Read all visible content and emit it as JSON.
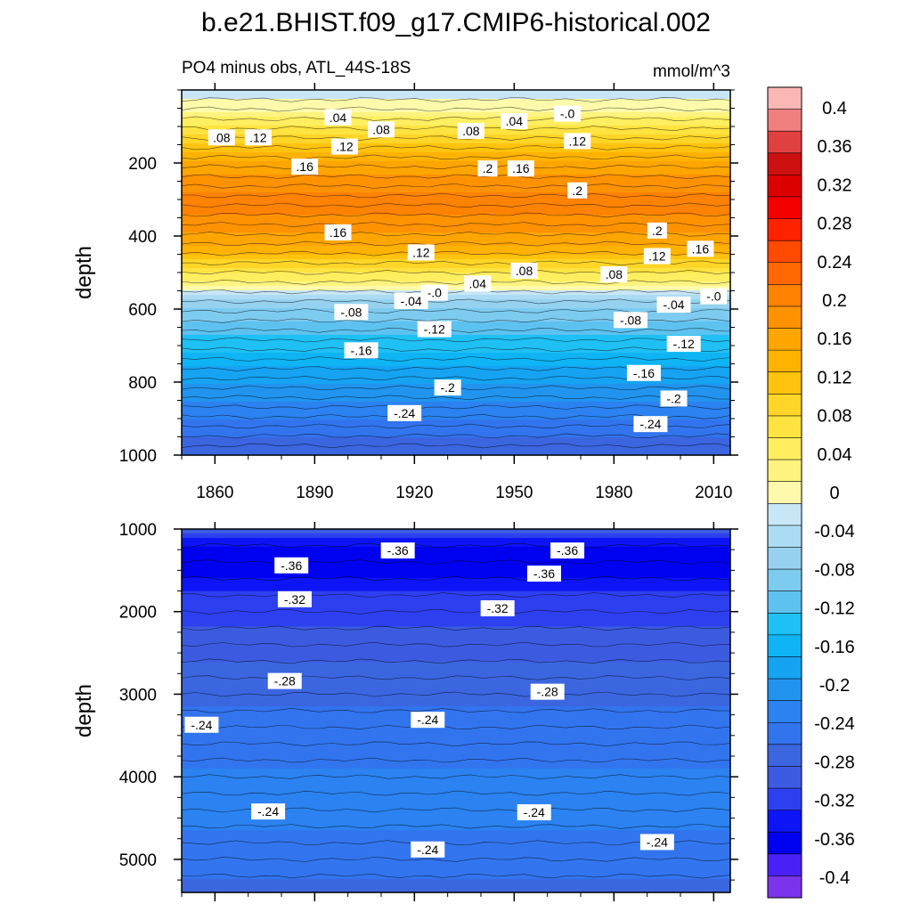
{
  "chart_data": {
    "type": "heatmap",
    "title": "b.e21.BHIST.f09_g17.CMIP6-historical.002",
    "left_subtitle": "PO4 minus obs, ATL_44S-18S",
    "right_subtitle": "mmol/m^3",
    "colorbar": {
      "labels": [
        "0.4",
        "0.36",
        "0.32",
        "0.28",
        "0.24",
        "0.2",
        "0.16",
        "0.12",
        "0.08",
        "0.04",
        "0",
        "-0.04",
        "-0.08",
        "-0.12",
        "-0.16",
        "-0.2",
        "-0.24",
        "-0.28",
        "-0.32",
        "-0.36",
        "-0.4"
      ],
      "colors": [
        "#fbb6b6",
        "#f08080",
        "#e14040",
        "#cd1010",
        "#dd0000",
        "#f40000",
        "#ff2200",
        "#ff4a00",
        "#ff6800",
        "#ff8200",
        "#ff9200",
        "#ffa500",
        "#ffb300",
        "#ffc30e",
        "#ffd527",
        "#ffe340",
        "#ffee60",
        "#fff380",
        "#fffaab",
        "#c8e6f6",
        "#acdcf3",
        "#96d2f0",
        "#7ecbf0",
        "#5ec2f0",
        "#1fc0f4",
        "#0fb4f4",
        "#16a3f2",
        "#2294f0",
        "#2b82f0",
        "#3274ee",
        "#3b66e0",
        "#3d5be0",
        "#2d40f0",
        "#0d14f5",
        "#0000f0",
        "#4a20f8",
        "#7b34ec"
      ],
      "min": -0.42,
      "max": 0.42
    },
    "panels": [
      {
        "ylabel": "depth",
        "ylim": [
          0,
          1000
        ],
        "xlim": [
          1850,
          2015
        ],
        "yticks": [
          200,
          400,
          600,
          800,
          1000
        ],
        "ytick_labels": [
          "200",
          "400",
          "600",
          "800",
          "1000"
        ],
        "xticks": [
          1860,
          1890,
          1920,
          1950,
          1980,
          2010
        ],
        "xtick_labels": [
          "1860",
          "1890",
          "1920",
          "1950",
          "1980",
          "2010"
        ],
        "profile": [
          {
            "depth": 0,
            "value": -0.02
          },
          {
            "depth": 50,
            "value": 0.0
          },
          {
            "depth": 100,
            "value": 0.06
          },
          {
            "depth": 170,
            "value": 0.13
          },
          {
            "depth": 230,
            "value": 0.17
          },
          {
            "depth": 300,
            "value": 0.2
          },
          {
            "depth": 360,
            "value": 0.19
          },
          {
            "depth": 420,
            "value": 0.15
          },
          {
            "depth": 480,
            "value": 0.09
          },
          {
            "depth": 530,
            "value": 0.02
          },
          {
            "depth": 560,
            "value": -0.04
          },
          {
            "depth": 600,
            "value": -0.08
          },
          {
            "depth": 680,
            "value": -0.13
          },
          {
            "depth": 760,
            "value": -0.17
          },
          {
            "depth": 820,
            "value": -0.2
          },
          {
            "depth": 900,
            "value": -0.24
          },
          {
            "depth": 1000,
            "value": -0.28
          }
        ],
        "contour_labels": [
          {
            "text": ".08",
            "year": 1862,
            "depth": 130
          },
          {
            "text": ".12",
            "year": 1873,
            "depth": 130
          },
          {
            "text": ".04",
            "year": 1897,
            "depth": 75
          },
          {
            "text": ".12",
            "year": 1899,
            "depth": 155
          },
          {
            "text": ".08",
            "year": 1910,
            "depth": 108
          },
          {
            "text": ".16",
            "year": 1887,
            "depth": 210
          },
          {
            "text": ".08",
            "year": 1937,
            "depth": 112
          },
          {
            "text": ".04",
            "year": 1950,
            "depth": 85
          },
          {
            "text": "-.0",
            "year": 1966,
            "depth": 65
          },
          {
            "text": ".12",
            "year": 1969,
            "depth": 140
          },
          {
            "text": ".2",
            "year": 1942,
            "depth": 215
          },
          {
            "text": ".16",
            "year": 1952,
            "depth": 215
          },
          {
            "text": ".2",
            "year": 1969,
            "depth": 275
          },
          {
            "text": ".16",
            "year": 1897,
            "depth": 390
          },
          {
            "text": ".12",
            "year": 1922,
            "depth": 445
          },
          {
            "text": ".2",
            "year": 1993,
            "depth": 385
          },
          {
            "text": ".12",
            "year": 1993,
            "depth": 455
          },
          {
            "text": ".16",
            "year": 2006,
            "depth": 435
          },
          {
            "text": ".08",
            "year": 1953,
            "depth": 495
          },
          {
            "text": ".08",
            "year": 1980,
            "depth": 505
          },
          {
            "text": ".04",
            "year": 1939,
            "depth": 530
          },
          {
            "text": "-.0",
            "year": 1926,
            "depth": 555
          },
          {
            "text": "-.04",
            "year": 1919,
            "depth": 578
          },
          {
            "text": "-.08",
            "year": 1901,
            "depth": 608
          },
          {
            "text": "-.08",
            "year": 1985,
            "depth": 630
          },
          {
            "text": "-.04",
            "year": 1998,
            "depth": 588
          },
          {
            "text": "-.0",
            "year": 2010,
            "depth": 565
          },
          {
            "text": "-.12",
            "year": 1926,
            "depth": 655
          },
          {
            "text": "-.12",
            "year": 2001,
            "depth": 695
          },
          {
            "text": "-.16",
            "year": 1904,
            "depth": 713
          },
          {
            "text": "-.16",
            "year": 1989,
            "depth": 775
          },
          {
            "text": "-.2",
            "year": 1930,
            "depth": 815
          },
          {
            "text": "-.2",
            "year": 1998,
            "depth": 845
          },
          {
            "text": "-.24",
            "year": 1917,
            "depth": 885
          },
          {
            "text": "-.24",
            "year": 1991,
            "depth": 915
          }
        ]
      },
      {
        "ylabel": "depth",
        "ylim": [
          1000,
          5400
        ],
        "xlim": [
          1850,
          2015
        ],
        "yticks": [
          1000,
          2000,
          3000,
          4000,
          5000
        ],
        "ytick_labels": [
          "1000",
          "2000",
          "3000",
          "4000",
          "5000"
        ],
        "xticks": [
          1860,
          1890,
          1920,
          1950,
          1980,
          2010
        ],
        "xtick_labels": [
          "",
          "",
          "",
          "",
          "",
          ""
        ],
        "profile": [
          {
            "depth": 1000,
            "value": -0.3
          },
          {
            "depth": 1300,
            "value": -0.37
          },
          {
            "depth": 1600,
            "value": -0.35
          },
          {
            "depth": 1850,
            "value": -0.32
          },
          {
            "depth": 2300,
            "value": -0.3
          },
          {
            "depth": 2900,
            "value": -0.27
          },
          {
            "depth": 3400,
            "value": -0.25
          },
          {
            "depth": 4300,
            "value": -0.23
          },
          {
            "depth": 4700,
            "value": -0.24
          },
          {
            "depth": 5200,
            "value": -0.26
          },
          {
            "depth": 5400,
            "value": -0.27
          }
        ],
        "contour_labels": [
          {
            "text": "-.36",
            "year": 1915,
            "depth": 1260
          },
          {
            "text": "-.36",
            "year": 1883,
            "depth": 1440
          },
          {
            "text": "-.36",
            "year": 1966,
            "depth": 1260
          },
          {
            "text": "-.36",
            "year": 1959,
            "depth": 1540
          },
          {
            "text": "-.32",
            "year": 1884,
            "depth": 1850
          },
          {
            "text": "-.32",
            "year": 1945,
            "depth": 1960
          },
          {
            "text": "-.28",
            "year": 1881,
            "depth": 2840
          },
          {
            "text": "-.28",
            "year": 1960,
            "depth": 2970
          },
          {
            "text": "-.24",
            "year": 1856,
            "depth": 3370
          },
          {
            "text": "-.24",
            "year": 1924,
            "depth": 3310
          },
          {
            "text": "-.24",
            "year": 1876,
            "depth": 4420
          },
          {
            "text": "-.24",
            "year": 1956,
            "depth": 4430
          },
          {
            "text": "-.24",
            "year": 1924,
            "depth": 4880
          },
          {
            "text": "-.24",
            "year": 1993,
            "depth": 4790
          }
        ]
      }
    ]
  }
}
